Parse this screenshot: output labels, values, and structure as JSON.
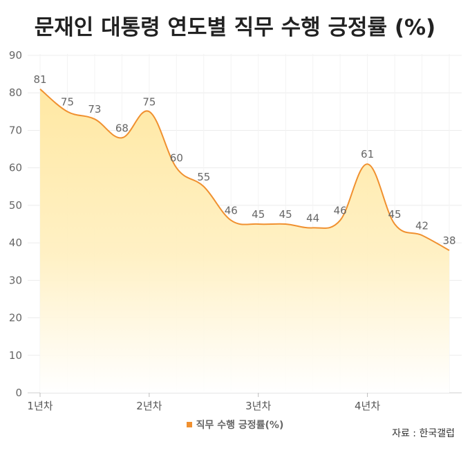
{
  "chart_data": {
    "type": "area",
    "title": "문재인 대통령 연도별 직무 수행 긍정률 (%)",
    "xlabel": "",
    "ylabel": "",
    "ylim": [
      0,
      90
    ],
    "yticks": [
      "0",
      "10",
      "20",
      "30",
      "40",
      "50",
      "60",
      "70",
      "80",
      "90"
    ],
    "xtick_labels": [
      "1년차",
      "2년차",
      "3년차",
      "4년차"
    ],
    "grid": true,
    "legend_placement": "bottom",
    "series": [
      {
        "name": "직무 수행 긍정률(%)",
        "values": [
          81,
          75,
          73,
          68,
          75,
          60,
          55,
          46,
          45,
          45,
          44,
          46,
          61,
          45,
          42,
          38
        ]
      }
    ],
    "data_labels": [
      "81",
      "75",
      "73",
      "68",
      "75",
      "60",
      "55",
      "46",
      "45",
      "45",
      "44",
      "46",
      "61",
      "45",
      "42",
      "38"
    ],
    "line_color": "#f0902f",
    "fill_color": "#ffe9a8"
  },
  "source": "자료 : 한국갤럽"
}
